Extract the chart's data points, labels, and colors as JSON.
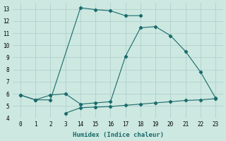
{
  "bg_color": "#cce8e0",
  "grid_color": "#aacccc",
  "line_color": "#1a6b6b",
  "xlabel": "Humidex (Indice chaleur)",
  "ylim": [
    4,
    13.5
  ],
  "yticks": [
    4,
    5,
    6,
    7,
    8,
    9,
    10,
    11,
    12,
    13
  ],
  "xtick_labels": [
    "0",
    "1",
    "2",
    "3",
    "14",
    "15",
    "16",
    "17",
    "18",
    "19",
    "20",
    "21",
    "22",
    "23"
  ],
  "line1_pos": [
    0,
    1,
    2,
    4,
    5,
    6,
    7,
    8
  ],
  "line1_y": [
    5.9,
    5.5,
    5.5,
    13.1,
    12.95,
    12.85,
    12.45,
    12.45
  ],
  "line2_pos": [
    0,
    1,
    2,
    3,
    4,
    5,
    6,
    7,
    8,
    9,
    10,
    11,
    12,
    13
  ],
  "line2_y": [
    5.9,
    5.5,
    5.9,
    6.0,
    5.15,
    5.25,
    5.35,
    9.1,
    11.45,
    11.55,
    10.8,
    9.5,
    7.8,
    5.65
  ],
  "line3_pos": [
    3,
    4,
    5,
    6,
    7,
    8,
    9,
    10,
    11,
    12,
    13
  ],
  "line3_y": [
    4.4,
    4.85,
    4.9,
    4.95,
    5.05,
    5.15,
    5.25,
    5.35,
    5.45,
    5.5,
    5.6
  ],
  "xtick_pos": [
    0,
    1,
    2,
    3,
    4,
    5,
    6,
    7,
    8,
    9,
    10,
    11,
    12,
    13
  ]
}
